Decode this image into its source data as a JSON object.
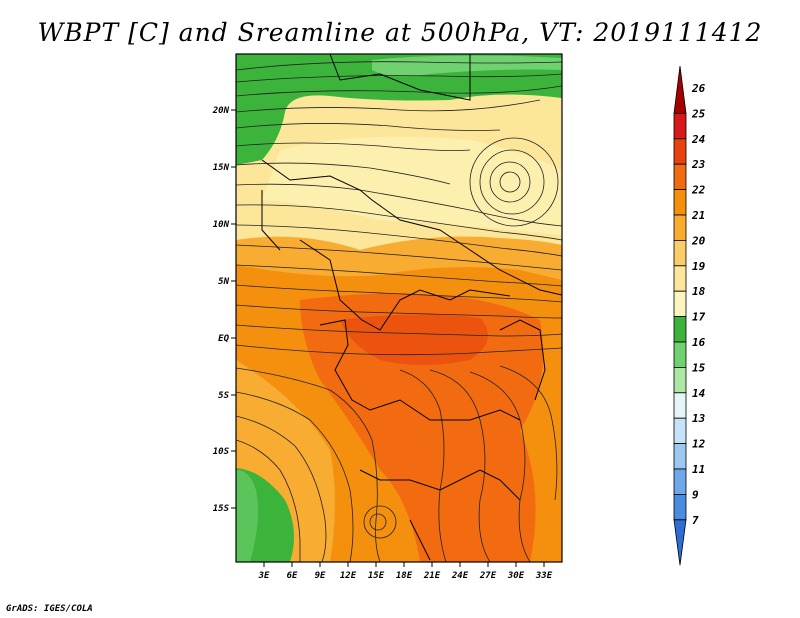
{
  "title": "WBPT [C] and Sreamline at 500hPa, VT: 2019111412",
  "footer": "GrADS: IGES/COLA",
  "map": {
    "lon_labels": [
      "3E",
      "6E",
      "9E",
      "12E",
      "15E",
      "18E",
      "21E",
      "24E",
      "27E",
      "30E",
      "33E"
    ],
    "lat_labels": [
      "20N",
      "15N",
      "10N",
      "5N",
      "EQ",
      "5S",
      "10S",
      "15S"
    ]
  },
  "colorbar": {
    "levels": [
      "26",
      "25",
      "24",
      "23",
      "22",
      "21",
      "20",
      "19",
      "18",
      "17",
      "16",
      "15",
      "14",
      "13",
      "12",
      "11",
      "9",
      "7"
    ],
    "colors": [
      "#a50000",
      "#d7191c",
      "#e8420e",
      "#f26b10",
      "#f5900e",
      "#f8ac32",
      "#fbcc6a",
      "#fce69a",
      "#fdf5c0",
      "#3cb43c",
      "#6fd16f",
      "#aee7a4",
      "#e4f6f6",
      "#c6e2f8",
      "#9cc8f2",
      "#6ea8ea",
      "#4a8ce2",
      "#2e6fd6"
    ]
  }
}
